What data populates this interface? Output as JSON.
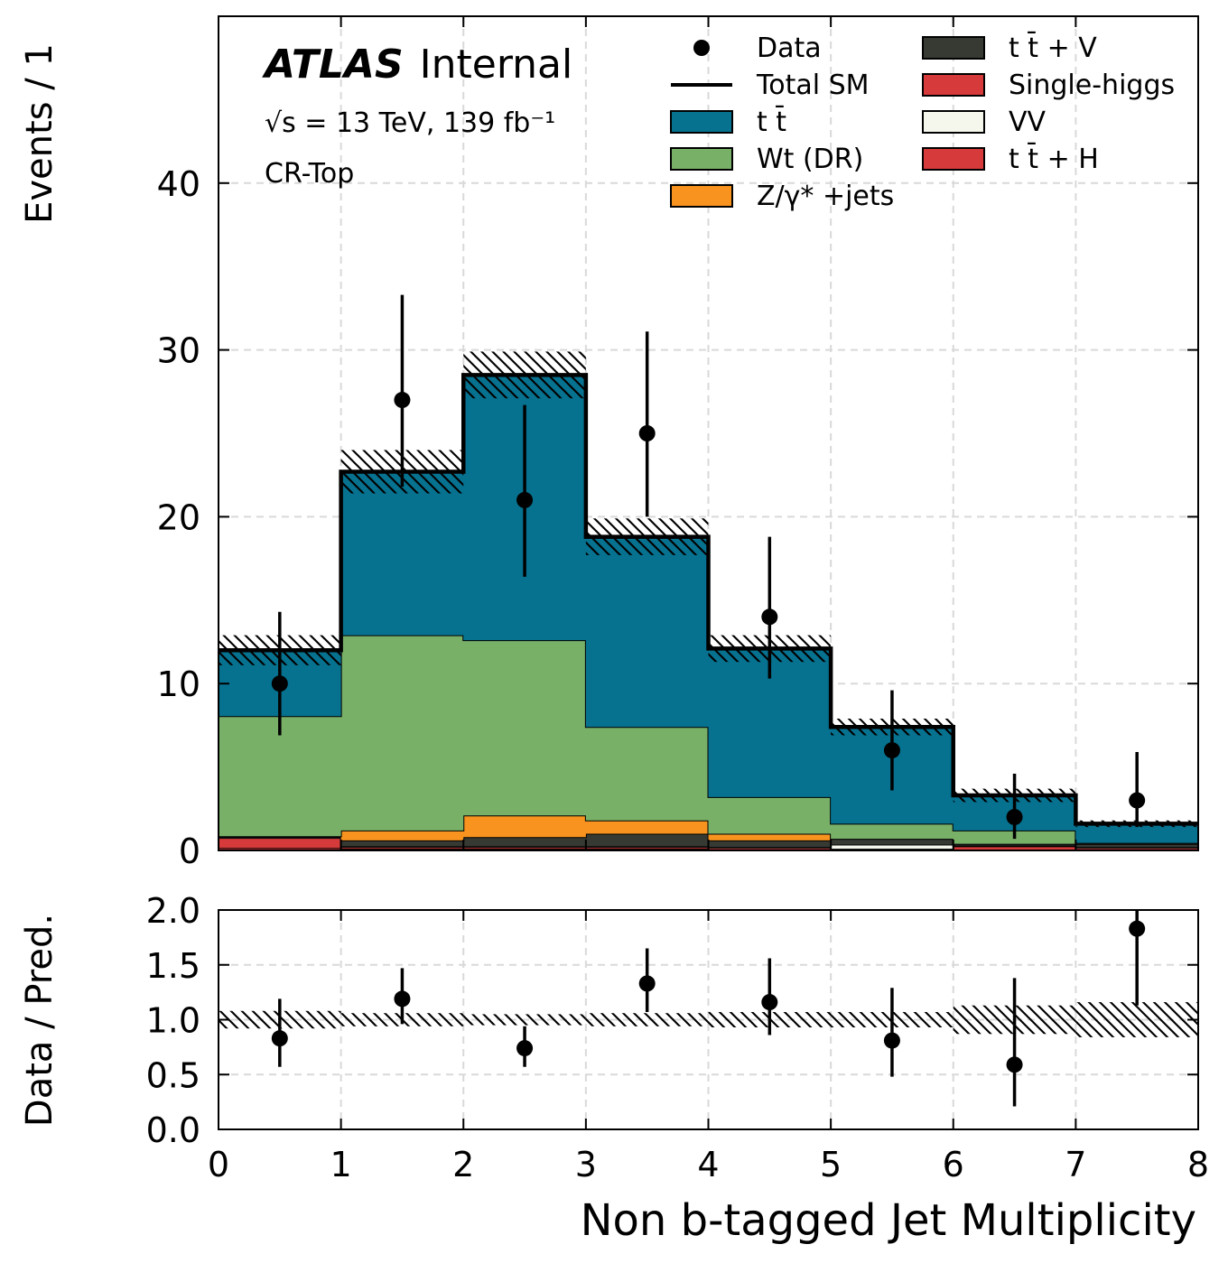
{
  "chart_data": [
    {
      "type": "bar",
      "stacked": true,
      "histogram": true,
      "bin_edges": [
        0,
        1,
        2,
        3,
        4,
        5,
        6,
        7,
        8
      ],
      "ylabel": "Events / 1",
      "ylim": [
        0,
        50
      ],
      "xlim": [
        0,
        8
      ],
      "grid": true,
      "legend_position": "top-right",
      "atlas_label": {
        "bold": "ATLAS",
        "rest": "Internal"
      },
      "energy_label": "√s = 13 TeV, 139 fb⁻¹",
      "region_label": "CR-Top",
      "y_ticks": [
        "0",
        "10",
        "20",
        "30",
        "40"
      ],
      "series": [
        {
          "name": "Single-higgs",
          "color": "#d73a3a",
          "values": [
            0.15,
            0.1,
            0.1,
            0.1,
            0.05,
            0.05,
            0.05,
            0.05
          ]
        },
        {
          "name": "t t̄ + H",
          "color": "#d73a3a",
          "values": [
            0.6,
            0.1,
            0.1,
            0.1,
            0.1,
            0.05,
            0.2,
            0.1
          ]
        },
        {
          "name": "VV",
          "color": "#f5f6ec",
          "values": [
            0.05,
            0.05,
            0.05,
            0.05,
            0.05,
            0.25,
            0.05,
            0.05
          ]
        },
        {
          "name": "t t̄ + V",
          "color": "#363a33",
          "values": [
            0.05,
            0.35,
            0.55,
            0.75,
            0.4,
            0.35,
            0.1,
            0.2
          ]
        },
        {
          "name": "Z/γ* +jets",
          "color": "#f7931e",
          "values": [
            0.0,
            0.6,
            1.3,
            0.8,
            0.4,
            0.0,
            0.0,
            0.0
          ]
        },
        {
          "name": "Wt (DR)",
          "color": "#79b068",
          "values": [
            7.2,
            11.7,
            10.5,
            5.6,
            2.2,
            0.9,
            0.8,
            0.05
          ]
        },
        {
          "name": "t t̄",
          "color": "#067290",
          "values": [
            3.9,
            9.8,
            15.9,
            11.4,
            8.9,
            5.8,
            2.1,
            1.1
          ]
        }
      ],
      "total_sm": [
        12.0,
        22.7,
        28.5,
        18.8,
        12.1,
        7.4,
        3.3,
        1.6
      ],
      "total_sm_unc": [
        0.9,
        1.3,
        1.4,
        1.1,
        0.8,
        0.5,
        0.4,
        0.2
      ],
      "data": {
        "name": "Data",
        "x": [
          0.5,
          1.5,
          2.5,
          3.5,
          4.5,
          5.5,
          6.5,
          7.5
        ],
        "y": [
          10,
          27,
          21,
          25,
          14,
          6,
          2,
          3
        ],
        "err_low": [
          3.1,
          5.2,
          4.6,
          5.0,
          3.7,
          2.4,
          1.3,
          1.6
        ],
        "err_high": [
          4.3,
          6.3,
          5.7,
          6.1,
          4.8,
          3.6,
          2.6,
          2.9
        ]
      },
      "legend": {
        "col1": [
          {
            "label": "Data",
            "kind": "marker"
          },
          {
            "label": "Total SM",
            "kind": "line"
          },
          {
            "label": "t t̄",
            "kind": "patch",
            "color": "#067290"
          },
          {
            "label": "Wt (DR)",
            "kind": "patch",
            "color": "#79b068"
          },
          {
            "label": "Z/γ* +jets",
            "kind": "patch",
            "color": "#f7931e"
          }
        ],
        "col2": [
          {
            "label": "t t̄ + V",
            "kind": "patch",
            "color": "#363a33"
          },
          {
            "label": "Single-higgs",
            "kind": "patch",
            "color": "#d73a3a"
          },
          {
            "label": "VV",
            "kind": "patch",
            "color": "#f5f6ec"
          },
          {
            "label": "t t̄ + H",
            "kind": "patch",
            "color": "#d73a3a"
          }
        ]
      }
    },
    {
      "type": "scatter",
      "ylabel": "Data / Pred.",
      "xlabel": "Non b-tagged Jet Multiplicity",
      "ylim": [
        0,
        2
      ],
      "xlim": [
        0,
        8
      ],
      "grid": true,
      "x_ticks": [
        "0",
        "1",
        "2",
        "3",
        "4",
        "5",
        "6",
        "7",
        "8"
      ],
      "y_ticks": [
        "0.0",
        "0.5",
        "1.0",
        "1.5",
        "2.0"
      ],
      "ratio": {
        "x": [
          0.5,
          1.5,
          2.5,
          3.5,
          4.5,
          5.5,
          6.5,
          7.5
        ],
        "y": [
          0.83,
          1.19,
          0.74,
          1.33,
          1.16,
          0.81,
          0.59,
          1.83
        ],
        "err_low": [
          0.26,
          0.23,
          0.17,
          0.26,
          0.3,
          0.33,
          0.38,
          0.7
        ],
        "err_high": [
          0.36,
          0.28,
          0.2,
          0.32,
          0.4,
          0.48,
          0.79,
          0.2
        ]
      },
      "band_unc": [
        0.08,
        0.06,
        0.05,
        0.06,
        0.07,
        0.07,
        0.13,
        0.16
      ]
    }
  ]
}
